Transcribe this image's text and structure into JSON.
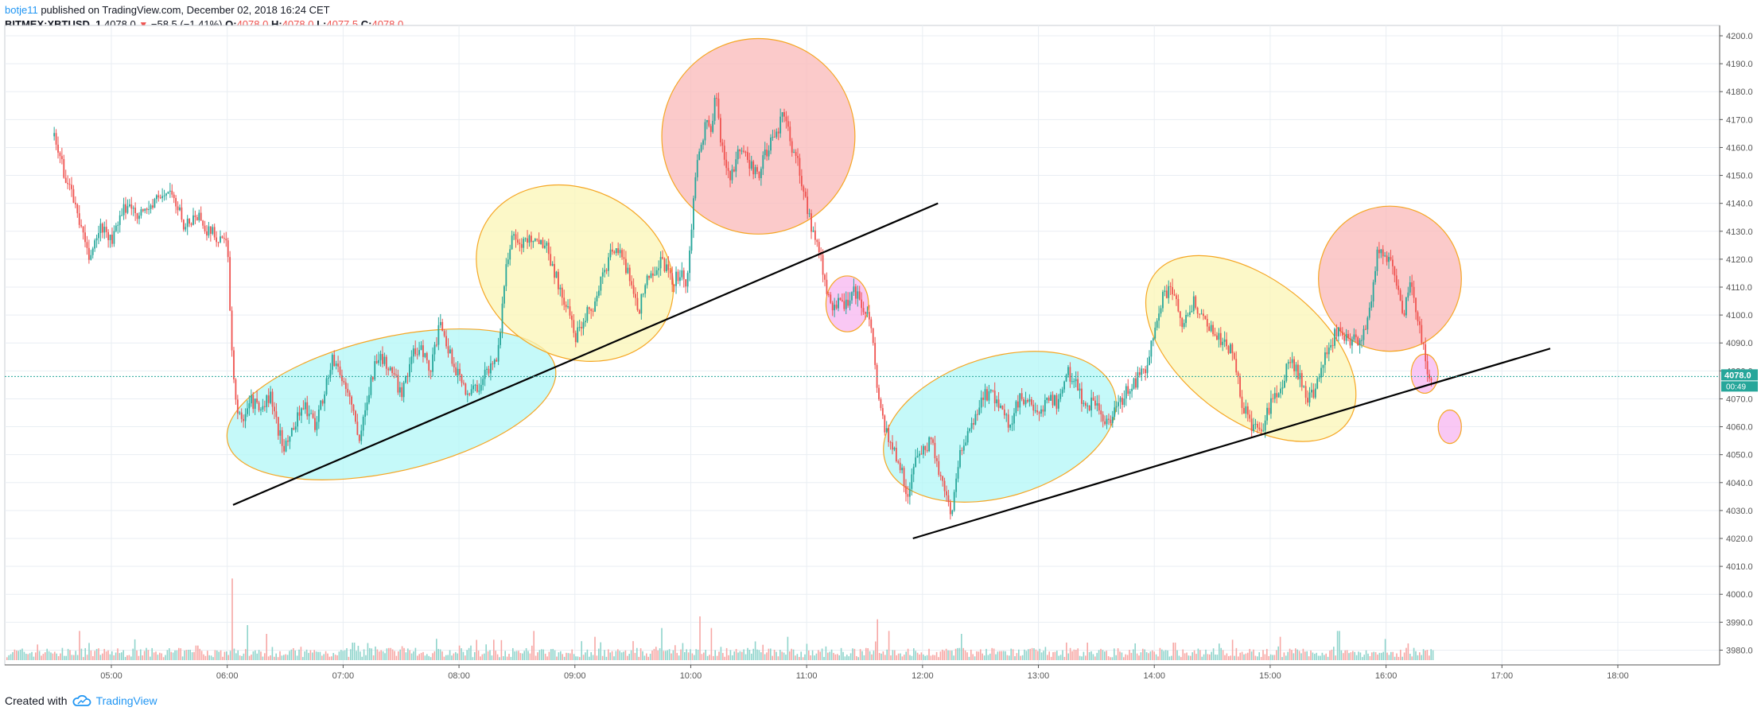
{
  "header": {
    "author": "botje11",
    "published": "published on TradingView.com, December 02, 2018 16:24 CET",
    "symbol": "BITMEX:XBTUSD, 1",
    "last": "4078.0",
    "change": "−58.5 (−1.41%)",
    "o_label": "O:",
    "o_value": "4078.0",
    "h_label": "H:",
    "h_value": "4078.0",
    "l_label": "L:",
    "l_value": "4077.5",
    "c_label": "C:",
    "c_value": "4078.0"
  },
  "footer": {
    "created_with": "Created with",
    "brand": "TradingView",
    "logo_icon": "tradingview-cloud-icon"
  },
  "colors": {
    "up": "#26a69a",
    "down": "#ef5350",
    "grid": "#e9eef3",
    "price_line": "#26a69a",
    "cyan_zone": "#b2f7f7",
    "yellow_zone": "#fbf6b6",
    "red_zone": "#f9b8b8",
    "pink_zone": "#f7b6f0",
    "zone_border": "#f5a623",
    "trendline": "#000000"
  },
  "chart_data": {
    "type": "candlestick",
    "xlim": [
      "04:30",
      "19:00"
    ],
    "ylim": [
      3975,
      4200
    ],
    "x_ticks": [
      "05:00",
      "06:00",
      "07:00",
      "08:00",
      "09:00",
      "10:00",
      "11:00",
      "12:00",
      "13:00",
      "14:00",
      "15:00",
      "16:00",
      "17:00",
      "18:00"
    ],
    "y_ticks": [
      3980,
      3990,
      4000,
      4010,
      4020,
      4030,
      4040,
      4050,
      4060,
      4070,
      4080,
      4090,
      4100,
      4110,
      4120,
      4130,
      4140,
      4150,
      4160,
      4170,
      4180,
      4190,
      4200
    ],
    "last_price_label": "4078.0",
    "countdown_label": "00:49",
    "price_path": [
      [
        "04:30",
        4164
      ],
      [
        "04:36",
        4150
      ],
      [
        "04:42",
        4138
      ],
      [
        "04:48",
        4120
      ],
      [
        "04:55",
        4132
      ],
      [
        "05:00",
        4126
      ],
      [
        "05:08",
        4140
      ],
      [
        "05:15",
        4136
      ],
      [
        "05:22",
        4140
      ],
      [
        "05:30",
        4145
      ],
      [
        "05:38",
        4132
      ],
      [
        "05:45",
        4136
      ],
      [
        "05:50",
        4130
      ],
      [
        "05:55",
        4128
      ],
      [
        "06:00",
        4126
      ],
      [
        "06:02",
        4090
      ],
      [
        "06:04",
        4070
      ],
      [
        "06:07",
        4062
      ],
      [
        "06:12",
        4070
      ],
      [
        "06:18",
        4065
      ],
      [
        "06:22",
        4072
      ],
      [
        "06:25",
        4062
      ],
      [
        "06:30",
        4052
      ],
      [
        "06:35",
        4062
      ],
      [
        "06:40",
        4068
      ],
      [
        "06:45",
        4060
      ],
      [
        "06:50",
        4072
      ],
      [
        "06:55",
        4085
      ],
      [
        "07:00",
        4076
      ],
      [
        "07:05",
        4068
      ],
      [
        "07:08",
        4052
      ],
      [
        "07:12",
        4070
      ],
      [
        "07:18",
        4086
      ],
      [
        "07:25",
        4080
      ],
      [
        "07:30",
        4072
      ],
      [
        "07:35",
        4084
      ],
      [
        "07:40",
        4090
      ],
      [
        "07:45",
        4080
      ],
      [
        "07:50",
        4096
      ],
      [
        "07:55",
        4086
      ],
      [
        "08:00",
        4078
      ],
      [
        "08:05",
        4072
      ],
      [
        "08:10",
        4075
      ],
      [
        "08:15",
        4080
      ],
      [
        "08:20",
        4086
      ],
      [
        "08:22",
        4100
      ],
      [
        "08:25",
        4120
      ],
      [
        "08:28",
        4130
      ],
      [
        "08:32",
        4125
      ],
      [
        "08:38",
        4128
      ],
      [
        "08:45",
        4125
      ],
      [
        "08:52",
        4110
      ],
      [
        "08:58",
        4098
      ],
      [
        "09:00",
        4092
      ],
      [
        "09:05",
        4100
      ],
      [
        "09:10",
        4104
      ],
      [
        "09:15",
        4115
      ],
      [
        "09:20",
        4125
      ],
      [
        "09:25",
        4120
      ],
      [
        "09:30",
        4110
      ],
      [
        "09:33",
        4102
      ],
      [
        "09:38",
        4114
      ],
      [
        "09:45",
        4120
      ],
      [
        "09:50",
        4112
      ],
      [
        "09:55",
        4115
      ],
      [
        "09:58",
        4110
      ],
      [
        "10:00",
        4125
      ],
      [
        "10:02",
        4150
      ],
      [
        "10:05",
        4160
      ],
      [
        "10:08",
        4170
      ],
      [
        "10:11",
        4165
      ],
      [
        "10:13",
        4180
      ],
      [
        "10:16",
        4160
      ],
      [
        "10:20",
        4150
      ],
      [
        "10:25",
        4158
      ],
      [
        "10:30",
        4155
      ],
      [
        "10:35",
        4150
      ],
      [
        "10:40",
        4160
      ],
      [
        "10:45",
        4164
      ],
      [
        "10:48",
        4175
      ],
      [
        "10:52",
        4160
      ],
      [
        "10:55",
        4155
      ],
      [
        "11:00",
        4140
      ],
      [
        "11:03",
        4130
      ],
      [
        "11:06",
        4125
      ],
      [
        "11:10",
        4110
      ],
      [
        "11:13",
        4100
      ],
      [
        "11:17",
        4108
      ],
      [
        "11:20",
        4103
      ],
      [
        "11:24",
        4110
      ],
      [
        "11:28",
        4105
      ],
      [
        "11:32",
        4100
      ],
      [
        "11:35",
        4085
      ],
      [
        "11:37",
        4070
      ],
      [
        "11:40",
        4060
      ],
      [
        "11:44",
        4052
      ],
      [
        "11:48",
        4048
      ],
      [
        "11:52",
        4034
      ],
      [
        "11:55",
        4045
      ],
      [
        "12:00",
        4052
      ],
      [
        "12:05",
        4055
      ],
      [
        "12:10",
        4040
      ],
      [
        "12:15",
        4030
      ],
      [
        "12:20",
        4052
      ],
      [
        "12:25",
        4058
      ],
      [
        "12:30",
        4070
      ],
      [
        "12:35",
        4072
      ],
      [
        "12:40",
        4068
      ],
      [
        "12:45",
        4060
      ],
      [
        "12:50",
        4070
      ],
      [
        "12:55",
        4068
      ],
      [
        "13:00",
        4062
      ],
      [
        "13:05",
        4072
      ],
      [
        "13:10",
        4068
      ],
      [
        "13:15",
        4080
      ],
      [
        "13:20",
        4075
      ],
      [
        "13:25",
        4066
      ],
      [
        "13:30",
        4070
      ],
      [
        "13:35",
        4060
      ],
      [
        "13:40",
        4065
      ],
      [
        "13:45",
        4072
      ],
      [
        "13:50",
        4076
      ],
      [
        "13:55",
        4080
      ],
      [
        "14:00",
        4095
      ],
      [
        "14:05",
        4108
      ],
      [
        "14:10",
        4110
      ],
      [
        "14:15",
        4095
      ],
      [
        "14:20",
        4105
      ],
      [
        "14:25",
        4100
      ],
      [
        "14:30",
        4094
      ],
      [
        "14:35",
        4090
      ],
      [
        "14:40",
        4088
      ],
      [
        "14:45",
        4070
      ],
      [
        "14:50",
        4060
      ],
      [
        "14:55",
        4058
      ],
      [
        "15:00",
        4068
      ],
      [
        "15:05",
        4072
      ],
      [
        "15:10",
        4084
      ],
      [
        "15:15",
        4078
      ],
      [
        "15:20",
        4070
      ],
      [
        "15:25",
        4076
      ],
      [
        "15:30",
        4088
      ],
      [
        "15:35",
        4095
      ],
      [
        "15:40",
        4092
      ],
      [
        "15:45",
        4090
      ],
      [
        "15:50",
        4095
      ],
      [
        "15:53",
        4110
      ],
      [
        "15:56",
        4125
      ],
      [
        "16:00",
        4120
      ],
      [
        "16:03",
        4118
      ],
      [
        "16:06",
        4110
      ],
      [
        "16:09",
        4100
      ],
      [
        "16:12",
        4112
      ],
      [
        "16:15",
        4105
      ],
      [
        "16:18",
        4092
      ],
      [
        "16:20",
        4085
      ],
      [
        "16:22",
        4075
      ],
      [
        "16:24",
        4078
      ]
    ],
    "volume_spikes": [
      [
        "04:34",
        4
      ],
      [
        "04:43",
        10
      ],
      [
        "05:44",
        5
      ],
      [
        "06:02",
        28
      ],
      [
        "06:10",
        12
      ],
      [
        "06:20",
        9
      ],
      [
        "07:05",
        6
      ],
      [
        "08:00",
        5
      ],
      [
        "08:18",
        7
      ],
      [
        "08:38",
        10
      ],
      [
        "09:10",
        8
      ],
      [
        "09:45",
        11
      ],
      [
        "10:04",
        15
      ],
      [
        "10:10",
        11
      ],
      [
        "10:50",
        8
      ],
      [
        "11:36",
        14
      ],
      [
        "11:42",
        10
      ],
      [
        "12:20",
        9
      ],
      [
        "13:25",
        6
      ],
      [
        "14:10",
        6
      ],
      [
        "14:40",
        7
      ],
      [
        "15:05",
        8
      ],
      [
        "15:35",
        10
      ]
    ],
    "drawings": {
      "zones": [
        {
          "kind": "ellipse",
          "fill": "cyan",
          "center": [
            "07:25",
            4068
          ],
          "rx_min": 87,
          "ry": 24,
          "angle": -13
        },
        {
          "kind": "ellipse",
          "fill": "yellow",
          "center": [
            "09:00",
            4115
          ],
          "rx_min": 53,
          "ry": 30,
          "angle": 28
        },
        {
          "kind": "ellipse",
          "fill": "red",
          "center": [
            "10:35",
            4164
          ],
          "rx_min": 50,
          "ry": 35,
          "angle": 0
        },
        {
          "kind": "ellipse",
          "fill": "pink",
          "center": [
            "11:21",
            4104
          ],
          "rx_min": 11,
          "ry": 10,
          "angle": 0
        },
        {
          "kind": "ellipse",
          "fill": "cyan",
          "center": [
            "12:40",
            4060
          ],
          "rx_min": 62,
          "ry": 25,
          "angle": -17
        },
        {
          "kind": "ellipse",
          "fill": "yellow",
          "center": [
            "14:50",
            4088
          ],
          "rx_min": 63,
          "ry": 25,
          "angle": 38
        },
        {
          "kind": "ellipse",
          "fill": "red",
          "center": [
            "16:02",
            4113
          ],
          "rx_min": 37,
          "ry": 26,
          "angle": 0
        },
        {
          "kind": "ellipse",
          "fill": "pink",
          "center": [
            "16:20",
            4079
          ],
          "rx_min": 7,
          "ry": 7,
          "angle": 0
        },
        {
          "kind": "ellipse",
          "fill": "pink",
          "center": [
            "16:33",
            4060
          ],
          "rx_min": 6,
          "ry": 6,
          "angle": 0
        }
      ],
      "trendlines": [
        {
          "from": [
            "06:03",
            4032
          ],
          "to": [
            "12:08",
            4140
          ]
        },
        {
          "from": [
            "11:55",
            4020
          ],
          "to": [
            "17:25",
            4088
          ]
        }
      ]
    }
  }
}
